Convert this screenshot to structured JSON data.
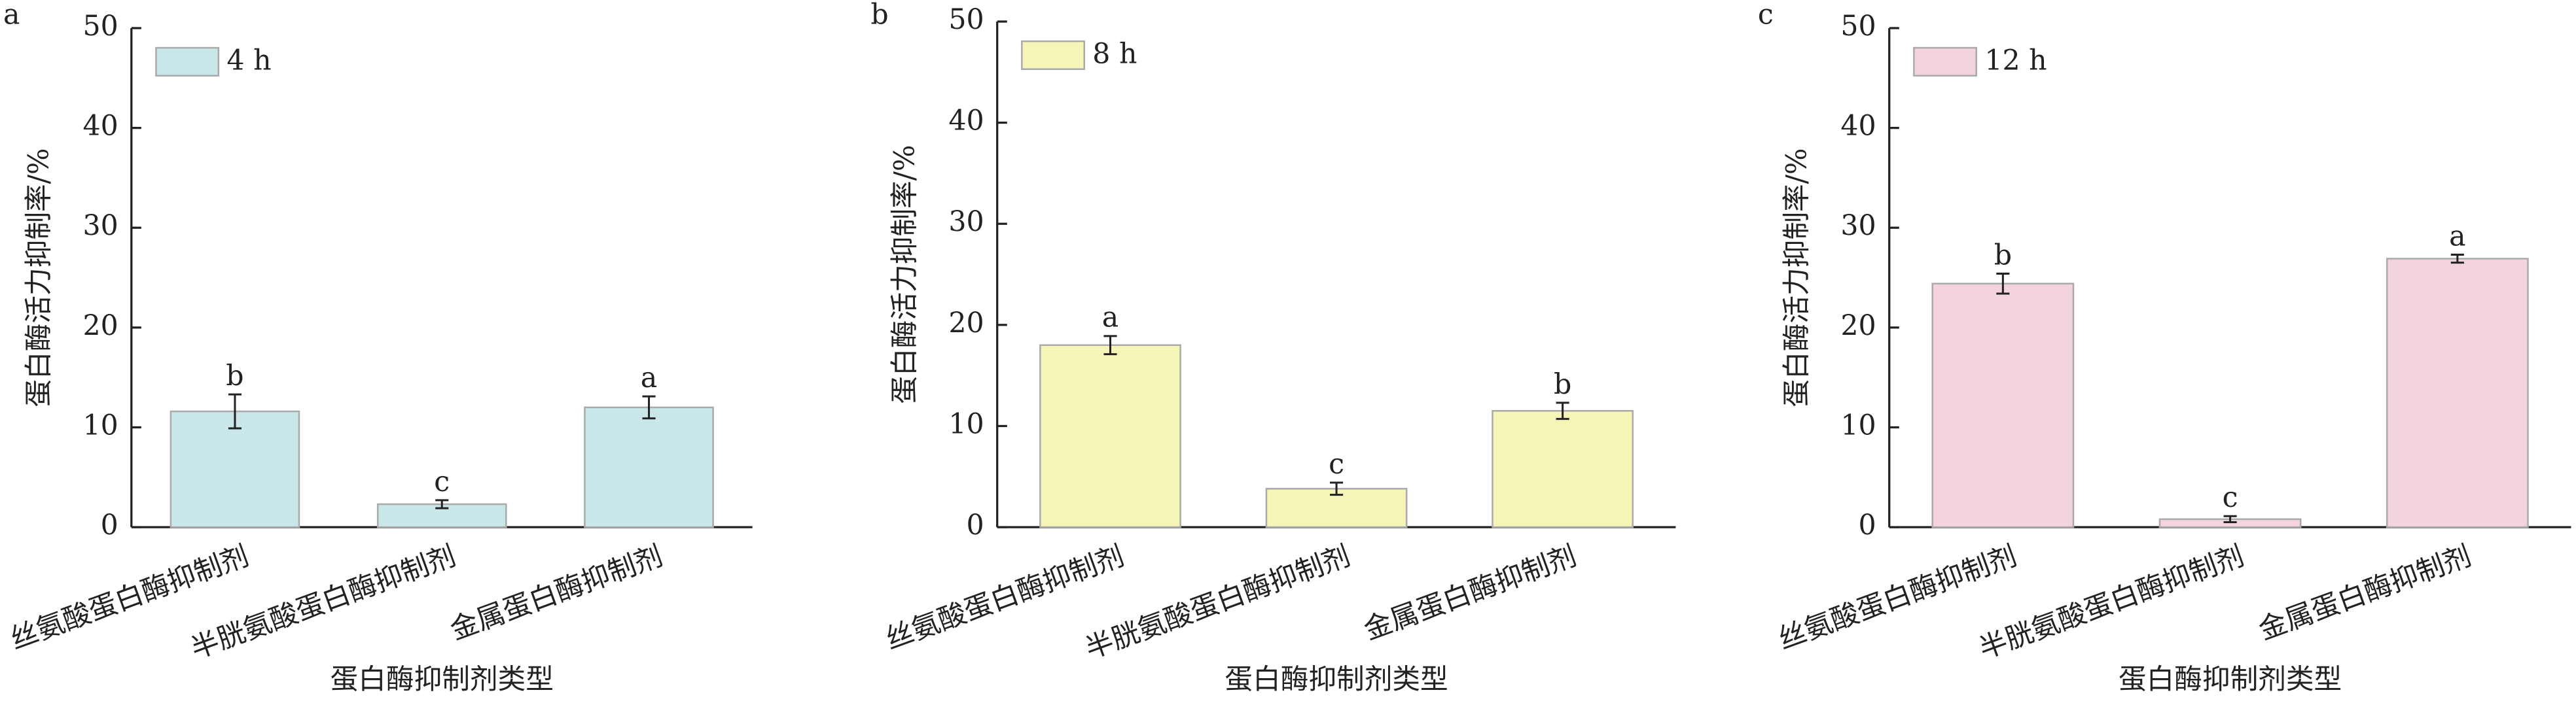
{
  "chart_data": [
    {
      "type": "bar",
      "panel": "a",
      "legend": "4 h",
      "color": "#c9e6e8",
      "categories": [
        "丝氨酸蛋白酶抑制剂",
        "半胱氨酸蛋白酶抑制剂",
        "金属蛋白酶抑制剂"
      ],
      "values": [
        11.6,
        2.3,
        12.0
      ],
      "errors": [
        1.7,
        0.4,
        1.1
      ],
      "annotations": [
        "b",
        "c",
        "a"
      ],
      "ylabel": "蛋白酶活力抑制率/%",
      "xlabel": "蛋白酶抑制剂类型",
      "ylim": [
        0,
        50
      ],
      "yticks": [
        0,
        10,
        20,
        30,
        40,
        50
      ]
    },
    {
      "type": "bar",
      "panel": "b",
      "legend": "8 h",
      "color": "#f6f5b8",
      "categories": [
        "丝氨酸蛋白酶抑制剂",
        "半胱氨酸蛋白酶抑制剂",
        "金属蛋白酶抑制剂"
      ],
      "values": [
        18.0,
        3.8,
        11.5
      ],
      "errors": [
        0.9,
        0.6,
        0.8
      ],
      "annotations": [
        "a",
        "c",
        "b"
      ],
      "ylabel": "蛋白酶活力抑制率/%",
      "xlabel": "蛋白酶抑制剂类型",
      "ylim": [
        0,
        50
      ],
      "yticks": [
        0,
        10,
        20,
        30,
        40,
        50
      ]
    },
    {
      "type": "bar",
      "panel": "c",
      "legend": "12 h",
      "color": "#f2d3df",
      "categories": [
        "丝氨酸蛋白酶抑制剂",
        "半胱氨酸蛋白酶抑制剂",
        "金属蛋白酶抑制剂"
      ],
      "values": [
        24.4,
        0.8,
        26.9
      ],
      "errors": [
        1.0,
        0.3,
        0.4
      ],
      "annotations": [
        "b",
        "c",
        "a"
      ],
      "ylabel": "蛋白酶活力抑制率/%",
      "xlabel": "蛋白酶抑制剂类型",
      "ylim": [
        0,
        50
      ],
      "yticks": [
        0,
        10,
        20,
        30,
        40,
        50
      ]
    }
  ]
}
